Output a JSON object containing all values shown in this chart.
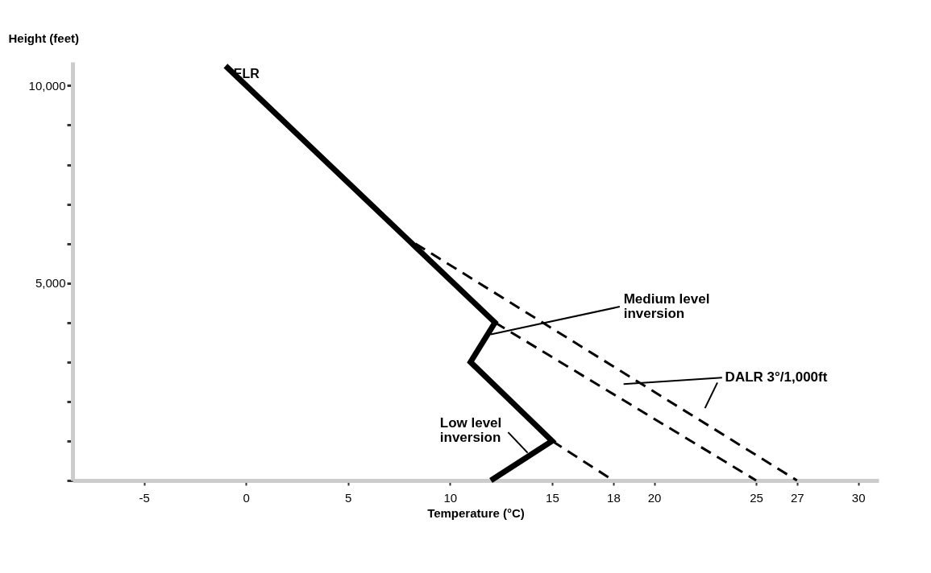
{
  "chart_data": {
    "type": "line",
    "xlabel": "Temperature (°C)",
    "ylabel": "Height (feet)",
    "xlim": [
      -8.5,
      31
    ],
    "ylim": [
      0,
      10600
    ],
    "xticks": [
      -5,
      0,
      5,
      10,
      15,
      18,
      20,
      25,
      27,
      30
    ],
    "yticks": [
      {
        "value": 0,
        "label": null
      },
      {
        "value": 1000,
        "label": null
      },
      {
        "value": 2000,
        "label": null
      },
      {
        "value": 3000,
        "label": null
      },
      {
        "value": 4000,
        "label": null
      },
      {
        "value": 5000,
        "label": "5,000"
      },
      {
        "value": 6000,
        "label": null
      },
      {
        "value": 7000,
        "label": null
      },
      {
        "value": 8000,
        "label": null
      },
      {
        "value": 9000,
        "label": null
      },
      {
        "value": 10000,
        "label": "10,000"
      }
    ],
    "grid": false,
    "marker": "none",
    "series": [
      {
        "name": "ELR",
        "color": "#000000",
        "line_style": "solid",
        "x": [
          -1,
          12.2,
          11,
          15,
          12
        ],
        "values": [
          10500,
          4000,
          3000,
          1000,
          0
        ]
      },
      {
        "color": "#000000",
        "line_style": "dashed",
        "x": [
          15,
          18
        ],
        "values": [
          1000,
          0
        ]
      },
      {
        "color": "#000000",
        "line_style": "dashed",
        "x": [
          12.2,
          25
        ],
        "values": [
          4000,
          0
        ]
      },
      {
        "color": "#000000",
        "line_style": "dashed",
        "x": [
          8.3,
          27
        ],
        "values": [
          6000,
          0
        ]
      }
    ],
    "annotations": [
      {
        "text": "Medium level inversion",
        "x": 12,
        "y": 3700
      },
      "DALR 3°/1,000ft",
      {
        "text": "Low level inversion",
        "x": 13.8,
        "y": 700
      }
    ]
  }
}
